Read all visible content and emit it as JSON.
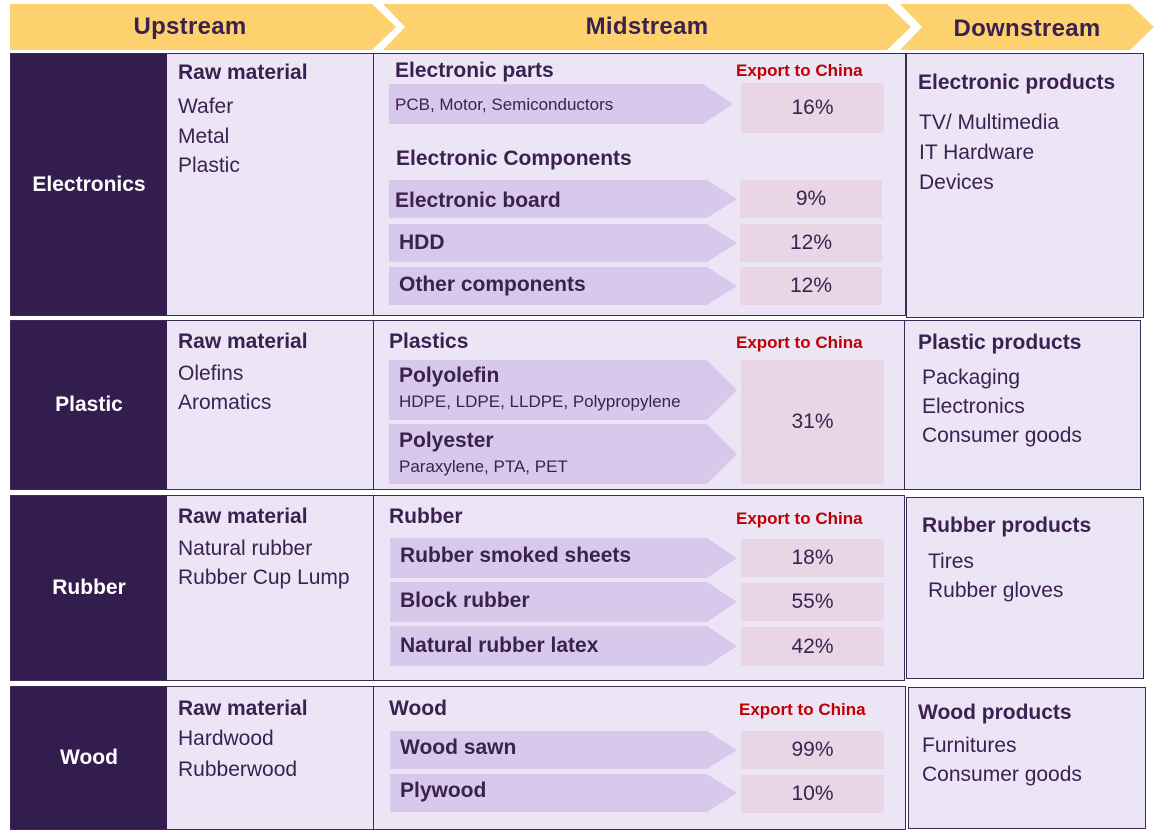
{
  "headers": {
    "upstream": "Upstream",
    "midstream": "Midstream",
    "downstream": "Downstream"
  },
  "colors": {
    "header_fill": "#fdd26e",
    "category_fill": "#321d4e",
    "panel_fill": "#ece5f6",
    "arrow_fill": "#d8c8ec",
    "percent_fill": "#e9d5e6",
    "export_label": "#c00000"
  },
  "export_label": "Export to China",
  "sections": {
    "electronics": {
      "category": "Electronics",
      "raw_title": "Raw material",
      "raw_items": [
        "Wafer",
        "Metal",
        "Plastic"
      ],
      "mid_title": "Electronic parts",
      "parts_arrow": {
        "sub": "PCB, Motor, Semiconductors",
        "percent": "16%"
      },
      "components_title": "Electronic Components",
      "components": [
        {
          "label": "Electronic board",
          "percent": "9%"
        },
        {
          "label": "HDD",
          "percent": "12%"
        },
        {
          "label": "Other components",
          "percent": "12%"
        }
      ],
      "down_title": "Electronic products",
      "down_items": [
        "TV/ Multimedia",
        "IT Hardware",
        "Devices"
      ]
    },
    "plastic": {
      "category": "Plastic",
      "raw_title": "Raw material",
      "raw_items": [
        "Olefins",
        "Aromatics"
      ],
      "mid_title": "Plastics",
      "arrows": [
        {
          "label": "Polyolefin",
          "sub": "HDPE, LDPE, LLDPE, Polypropylene"
        },
        {
          "label": "Polyester",
          "sub": "Paraxylene, PTA, PET"
        }
      ],
      "percent": "31%",
      "down_title": "Plastic products",
      "down_items": [
        "Packaging",
        "Electronics",
        "Consumer goods"
      ]
    },
    "rubber": {
      "category": "Rubber",
      "raw_title": "Raw material",
      "raw_items": [
        "Natural rubber",
        "Rubber Cup Lump"
      ],
      "mid_title": "Rubber",
      "arrows": [
        {
          "label": "Rubber smoked sheets",
          "percent": "18%"
        },
        {
          "label": "Block rubber",
          "percent": "55%"
        },
        {
          "label": "Natural rubber latex",
          "percent": "42%"
        }
      ],
      "down_title": "Rubber products",
      "down_items": [
        "Tires",
        "Rubber gloves"
      ]
    },
    "wood": {
      "category": "Wood",
      "raw_title": "Raw material",
      "raw_items": [
        "Hardwood",
        "Rubberwood"
      ],
      "mid_title": "Wood",
      "arrows": [
        {
          "label": "Wood sawn",
          "percent": "99%"
        },
        {
          "label": "Plywood",
          "percent": "10%"
        }
      ],
      "down_title": "Wood products",
      "down_items": [
        "Furnitures",
        "Consumer goods"
      ]
    }
  }
}
